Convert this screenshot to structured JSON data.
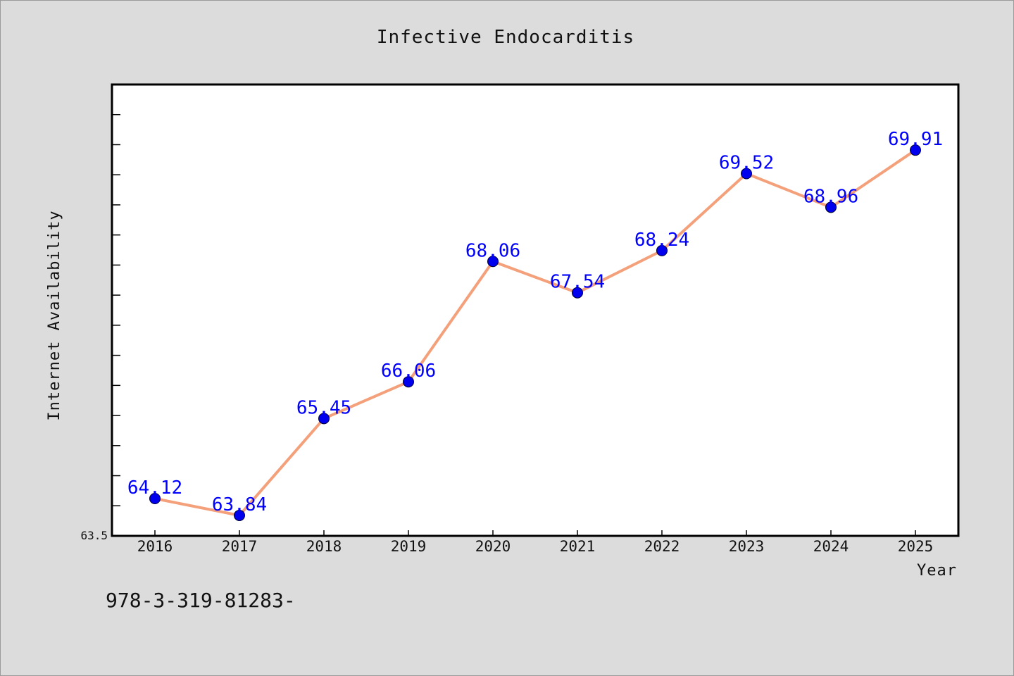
{
  "chart_data": {
    "type": "line",
    "title": "Infective Endocarditis",
    "xlabel": "Year",
    "ylabel": "Internet Availability",
    "categories": [
      "2016",
      "2017",
      "2018",
      "2019",
      "2020",
      "2021",
      "2022",
      "2023",
      "2024",
      "2025"
    ],
    "series": [
      {
        "values": [
          64.12,
          63.84,
          65.45,
          66.06,
          68.06,
          67.54,
          68.24,
          69.52,
          68.96,
          69.91
        ],
        "labels": [
          "64.12",
          "63.84",
          "65.45",
          "66.06",
          "68.06",
          "67.54",
          "68.24",
          "69.52",
          "68.96",
          "69.91"
        ],
        "line_color": "#f4a07a",
        "marker_color": "#0000ee"
      }
    ],
    "ylim": [
      63.5,
      71.0
    ],
    "y_tick_label": "63.5",
    "grid": false,
    "legend": "none"
  },
  "footer": {
    "isbn_text": "978-3-319-81283-"
  }
}
